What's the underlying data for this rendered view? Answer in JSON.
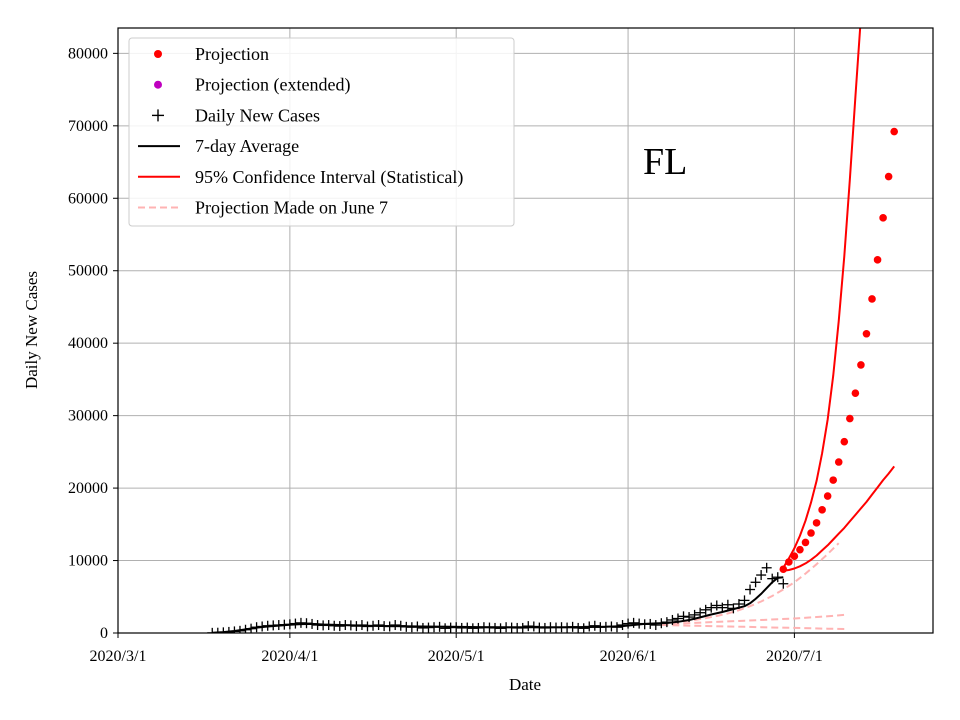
{
  "chart_data": {
    "type": "line",
    "title": "",
    "annotation": "FL",
    "xlabel": "Date",
    "ylabel": "Daily New Cases",
    "x_range_days": [
      0,
      147
    ],
    "ylim": [
      0,
      83500
    ],
    "grid": true,
    "legend_position": "top-left",
    "x_ticks": [
      {
        "day": 0,
        "label": "2020/3/1"
      },
      {
        "day": 31,
        "label": "2020/4/1"
      },
      {
        "day": 61,
        "label": "2020/5/1"
      },
      {
        "day": 92,
        "label": "2020/6/1"
      },
      {
        "day": 122,
        "label": "2020/7/1"
      }
    ],
    "y_ticks": [
      0,
      10000,
      20000,
      30000,
      40000,
      50000,
      60000,
      70000,
      80000
    ],
    "legend": [
      {
        "label": "Projection",
        "style": "dot",
        "color": "#ff0000"
      },
      {
        "label": "Projection (extended)",
        "style": "dot",
        "color": "#bf00bf"
      },
      {
        "label": "Daily New Cases",
        "style": "plus",
        "color": "#000000"
      },
      {
        "label": "7-day Average",
        "style": "line",
        "color": "#000000"
      },
      {
        "label": "95% Confidence Interval (Statistical)",
        "style": "line",
        "color": "#ff0000"
      },
      {
        "label": "Projection Made on June 7",
        "style": "dashed",
        "color": "#ffb3b3"
      }
    ],
    "series": [
      {
        "name": "Daily New Cases",
        "style": "plus",
        "color": "#000000",
        "x": [
          17,
          18,
          19,
          20,
          21,
          22,
          23,
          24,
          25,
          26,
          27,
          28,
          29,
          30,
          31,
          32,
          33,
          34,
          35,
          36,
          37,
          38,
          39,
          40,
          41,
          42,
          43,
          44,
          45,
          46,
          47,
          48,
          49,
          50,
          51,
          52,
          53,
          54,
          55,
          56,
          57,
          58,
          59,
          60,
          61,
          62,
          63,
          64,
          65,
          66,
          67,
          68,
          69,
          70,
          71,
          72,
          73,
          74,
          75,
          76,
          77,
          78,
          79,
          80,
          81,
          82,
          83,
          84,
          85,
          86,
          87,
          88,
          89,
          90,
          91,
          92,
          93,
          94,
          95,
          96,
          97,
          98,
          99,
          100,
          101,
          102,
          103,
          104,
          105,
          106,
          107,
          108,
          109,
          110,
          111,
          112,
          113,
          114,
          115,
          116,
          117,
          118,
          119,
          120
        ],
        "y": [
          20,
          40,
          90,
          150,
          220,
          300,
          450,
          600,
          800,
          900,
          1000,
          1050,
          1100,
          1150,
          1200,
          1300,
          1400,
          1350,
          1250,
          1100,
          1050,
          1100,
          1000,
          950,
          1100,
          1050,
          950,
          1100,
          900,
          1000,
          1100,
          950,
          900,
          1100,
          1000,
          850,
          800,
          900,
          700,
          750,
          800,
          850,
          650,
          750,
          800,
          700,
          750,
          650,
          700,
          800,
          750,
          700,
          650,
          800,
          750,
          700,
          700,
          950,
          900,
          750,
          700,
          800,
          750,
          800,
          750,
          850,
          700,
          650,
          900,
          1000,
          800,
          850,
          900,
          800,
          1100,
          1300,
          1400,
          1300,
          1200,
          1250,
          1100,
          1350,
          1500,
          1800,
          2000,
          2300,
          2200,
          2500,
          2800,
          3200,
          3500,
          3800,
          3500,
          3900,
          3400,
          4000,
          4500,
          6000,
          7000,
          8000,
          9000,
          7500,
          7700,
          6800
        ]
      },
      {
        "name": "7-day Average",
        "style": "line",
        "color": "#000000",
        "x": [
          17,
          19,
          21,
          23,
          25,
          27,
          29,
          31,
          33,
          35,
          37,
          40,
          45,
          50,
          55,
          60,
          65,
          70,
          75,
          80,
          85,
          88,
          91,
          93,
          95,
          97,
          99,
          101,
          103,
          105,
          107,
          109,
          111,
          113,
          114,
          115,
          116,
          117,
          118,
          119,
          120
        ],
        "y": [
          30,
          120,
          280,
          500,
          750,
          900,
          1020,
          1150,
          1230,
          1250,
          1180,
          1100,
          1000,
          950,
          900,
          850,
          820,
          800,
          790,
          800,
          830,
          870,
          950,
          1100,
          1250,
          1320,
          1380,
          1550,
          1800,
          2150,
          2550,
          2900,
          3300,
          3700,
          4100,
          4700,
          5400,
          6200,
          7000,
          7600,
          7700
        ]
      },
      {
        "name": "Projection",
        "style": "dot",
        "color": "#ff0000",
        "x": [
          120,
          121,
          122,
          123,
          124,
          125,
          126,
          127,
          128,
          129,
          130,
          131,
          132,
          133,
          134,
          135,
          136,
          137,
          138,
          139,
          140
        ],
        "y": [
          8800,
          9800,
          10600,
          11500,
          12500,
          13800,
          15200,
          17000,
          18900,
          21100,
          23600,
          26400,
          29600,
          33100,
          37000,
          41300,
          46100,
          51500,
          57300,
          63000,
          69200
        ]
      },
      {
        "name": "95% CI Upper",
        "style": "line",
        "color": "#ff0000",
        "x": [
          120,
          121,
          122,
          123,
          124,
          125,
          126,
          127,
          128,
          129,
          130,
          131,
          132,
          133,
          134,
          135
        ],
        "y": [
          9000,
          10300,
          11700,
          13400,
          15500,
          18000,
          21000,
          24800,
          29500,
          35500,
          43000,
          52000,
          62500,
          74000,
          85000,
          98000
        ]
      },
      {
        "name": "95% CI Lower",
        "style": "line",
        "color": "#ff0000",
        "x": [
          120,
          121,
          122,
          123,
          124,
          125,
          126,
          127,
          128,
          129,
          130,
          131,
          132,
          133,
          134,
          135,
          136,
          137,
          138,
          139,
          140
        ],
        "y": [
          8600,
          8700,
          8900,
          9200,
          9600,
          10100,
          10700,
          11400,
          12100,
          12900,
          13700,
          14500,
          15400,
          16300,
          17200,
          18100,
          19100,
          20100,
          21100,
          22000,
          23000
        ]
      },
      {
        "name": "Projection Made on June 7 (central)",
        "style": "dashed",
        "color": "#ffb3b3",
        "x": [
          98,
          100,
          102,
          104,
          106,
          108,
          110,
          112,
          114,
          116,
          118,
          120,
          122,
          124,
          126,
          128,
          130
        ],
        "y": [
          1300,
          1450,
          1600,
          1800,
          2050,
          2350,
          2700,
          3150,
          3700,
          4350,
          5100,
          6000,
          7000,
          8200,
          9500,
          10900,
          12400
        ]
      },
      {
        "name": "Projection Made on June 7 (upper)",
        "style": "dashed",
        "color": "#ffb3b3",
        "x": [
          98,
          101,
          104,
          107,
          110,
          113,
          116,
          119,
          122,
          125,
          128,
          131
        ],
        "y": [
          1200,
          1300,
          1400,
          1500,
          1600,
          1700,
          1800,
          1900,
          2000,
          2150,
          2300,
          2500
        ]
      },
      {
        "name": "Projection Made on June 7 (lower)",
        "style": "dashed",
        "color": "#ffb3b3",
        "x": [
          98,
          101,
          104,
          107,
          110,
          113,
          116,
          119,
          122,
          125,
          128,
          131
        ],
        "y": [
          1100,
          1050,
          1000,
          950,
          900,
          850,
          800,
          750,
          700,
          650,
          600,
          550
        ]
      }
    ]
  }
}
